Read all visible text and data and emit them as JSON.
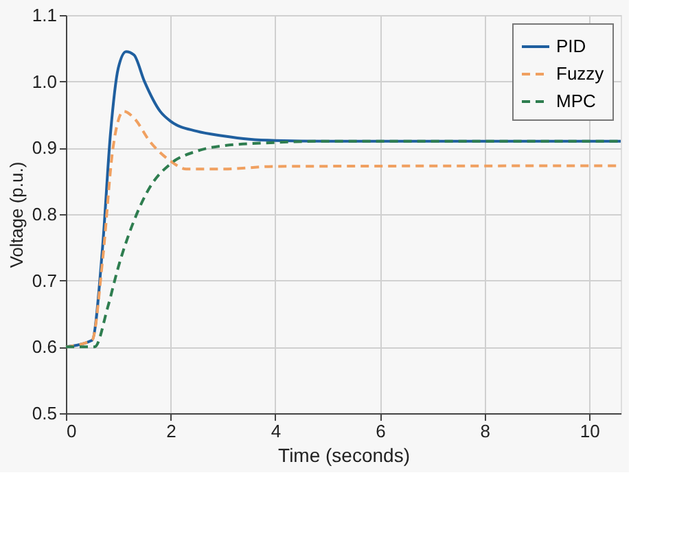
{
  "chart_data": {
    "type": "line",
    "xlabel": "Time (seconds)",
    "ylabel": "Voltage (p.u.)",
    "xlim": [
      0,
      10.6
    ],
    "xticks": [
      0,
      2,
      4,
      6,
      8,
      10
    ],
    "ylim": [
      0.5,
      1.1
    ],
    "yticks": [
      0.5,
      0.6,
      0.7,
      0.8,
      0.9,
      {
        "value": 1.0,
        "label": "1.0"
      },
      1.1
    ],
    "grid": true,
    "legend": "top right",
    "series": [
      {
        "name": "PID",
        "color": "#1f5f9f",
        "line_style": "solid",
        "x": [
          0,
          0.5,
          0.7,
          0.85,
          1.0,
          1.15,
          1.3,
          1.5,
          1.8,
          2.0,
          2.5,
          3,
          3.5,
          4,
          5,
          10.6
        ],
        "values": [
          0.6,
          0.61,
          0.75,
          0.92,
          1.02,
          1.045,
          1.04,
          1.0,
          0.955,
          0.94,
          0.925,
          0.918,
          0.913,
          0.911,
          0.91,
          0.91
        ]
      },
      {
        "name": "Fuzzy",
        "color": "#f0a060",
        "line_style": "dashed",
        "x": [
          0,
          0.5,
          0.7,
          0.9,
          1.1,
          1.3,
          1.6,
          2.0,
          2.3,
          3,
          4,
          10.6
        ],
        "values": [
          0.6,
          0.61,
          0.73,
          0.9,
          0.955,
          0.945,
          0.91,
          0.88,
          0.868,
          0.868,
          0.872,
          0.873
        ]
      },
      {
        "name": "MPC",
        "color": "#2e7d4f",
        "line_style": "dashed",
        "x": [
          0,
          0.55,
          0.8,
          1.0,
          1.3,
          1.6,
          2.0,
          2.5,
          3,
          4,
          5,
          10.6
        ],
        "values": [
          0.6,
          0.6,
          0.66,
          0.72,
          0.79,
          0.84,
          0.876,
          0.895,
          0.903,
          0.908,
          0.91,
          0.91
        ]
      }
    ]
  }
}
